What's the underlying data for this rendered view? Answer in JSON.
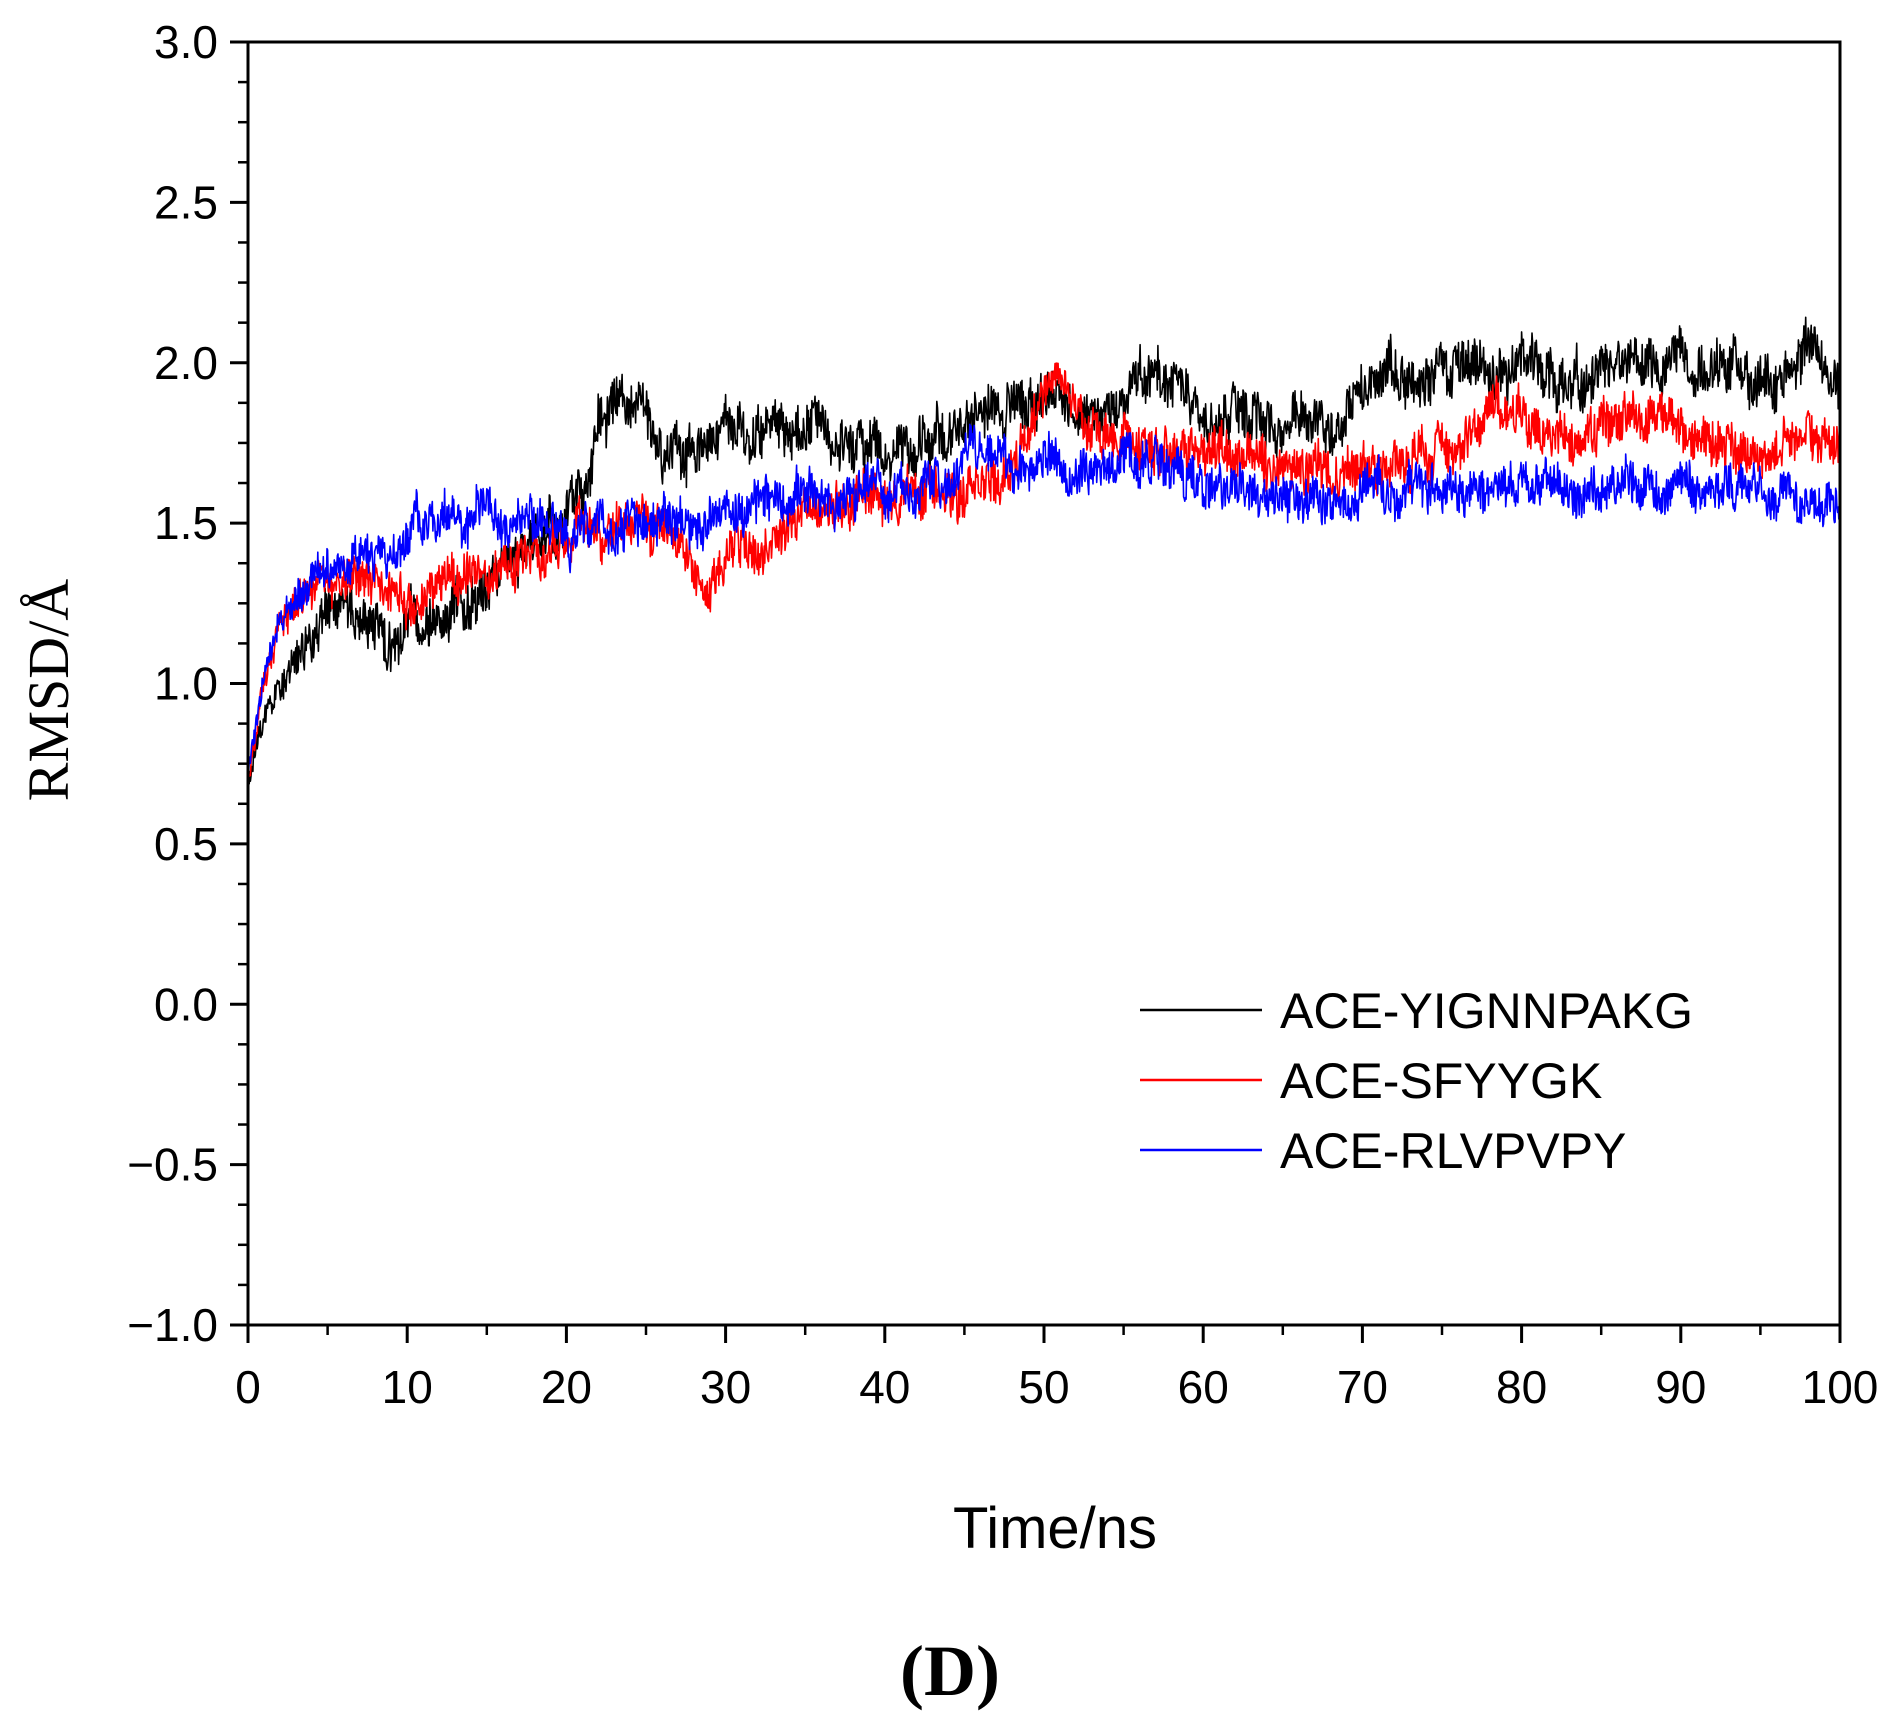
{
  "chart_data": {
    "type": "line",
    "title": "",
    "xlabel": "Time/ns",
    "ylabel": "RMSD/Å",
    "xlim": [
      0,
      100
    ],
    "ylim": [
      -1.0,
      3.0
    ],
    "x_ticks": [
      0,
      10,
      20,
      30,
      40,
      50,
      60,
      70,
      80,
      90,
      100
    ],
    "x_tick_labels": [
      "0",
      "10",
      "20",
      "30",
      "40",
      "50",
      "60",
      "70",
      "80",
      "90",
      "100"
    ],
    "y_ticks": [
      -1.0,
      -0.5,
      0.0,
      0.5,
      1.0,
      1.5,
      2.0,
      2.5,
      3.0
    ],
    "y_tick_labels": [
      "−1.0",
      "−0.5",
      "0.0",
      "0.5",
      "1.0",
      "1.5",
      "2.0",
      "2.5",
      "3.0"
    ],
    "grid": false,
    "legend_position": "bottom-right",
    "panel_label": "(D)",
    "series": [
      {
        "name": "ACE-YIGNNPAKG",
        "color": "#000000",
        "noise": 0.09,
        "x": [
          0,
          1,
          2,
          3,
          4,
          5,
          6,
          7,
          8,
          9,
          10,
          12,
          14,
          16,
          18,
          20,
          21,
          22,
          23,
          24,
          25,
          26,
          28,
          30,
          32,
          34,
          36,
          38,
          40,
          42,
          44,
          46,
          48,
          50,
          51,
          52,
          54,
          56,
          57,
          58,
          60,
          62,
          64,
          66,
          68,
          70,
          72,
          74,
          76,
          78,
          80,
          82,
          84,
          86,
          88,
          90,
          92,
          94,
          96,
          97,
          98,
          99,
          100
        ],
        "y": [
          0.7,
          0.88,
          0.98,
          1.08,
          1.16,
          1.22,
          1.24,
          1.2,
          1.16,
          1.14,
          1.16,
          1.26,
          1.3,
          1.36,
          1.4,
          1.52,
          1.66,
          1.82,
          1.86,
          1.84,
          1.76,
          1.72,
          1.76,
          1.78,
          1.78,
          1.78,
          1.78,
          1.76,
          1.7,
          1.72,
          1.78,
          1.84,
          1.82,
          1.9,
          1.92,
          1.86,
          1.84,
          1.92,
          1.96,
          1.94,
          1.82,
          1.84,
          1.82,
          1.84,
          1.82,
          1.9,
          1.96,
          1.98,
          1.98,
          1.98,
          1.98,
          1.96,
          1.94,
          1.96,
          2.0,
          1.98,
          1.94,
          1.94,
          1.92,
          1.98,
          2.06,
          2.0,
          1.98
        ]
      },
      {
        "name": "ACE-SFYYGK",
        "color": "#ff0000",
        "noise": 0.08,
        "x": [
          0,
          1,
          2,
          3,
          4,
          5,
          6,
          7,
          8,
          9,
          10,
          12,
          14,
          16,
          18,
          20,
          22,
          24,
          26,
          28,
          29,
          30,
          32,
          34,
          36,
          38,
          40,
          42,
          44,
          46,
          48,
          50,
          51,
          52,
          54,
          56,
          58,
          60,
          62,
          64,
          66,
          68,
          70,
          72,
          74,
          76,
          78,
          80,
          82,
          84,
          86,
          88,
          90,
          92,
          94,
          96,
          98,
          100
        ],
        "y": [
          0.7,
          1.0,
          1.16,
          1.26,
          1.32,
          1.34,
          1.34,
          1.34,
          1.32,
          1.3,
          1.28,
          1.3,
          1.34,
          1.36,
          1.4,
          1.46,
          1.48,
          1.5,
          1.5,
          1.38,
          1.32,
          1.38,
          1.44,
          1.5,
          1.52,
          1.56,
          1.58,
          1.6,
          1.6,
          1.62,
          1.66,
          1.9,
          1.96,
          1.86,
          1.8,
          1.72,
          1.72,
          1.72,
          1.7,
          1.68,
          1.68,
          1.66,
          1.64,
          1.7,
          1.74,
          1.74,
          1.86,
          1.82,
          1.78,
          1.76,
          1.8,
          1.84,
          1.82,
          1.76,
          1.74,
          1.74,
          1.76,
          1.8
        ]
      },
      {
        "name": "ACE-RLVPVPY",
        "color": "#0000ff",
        "noise": 0.075,
        "x": [
          0,
          1,
          2,
          3,
          4,
          5,
          6,
          7,
          8,
          9,
          10,
          11,
          12,
          14,
          16,
          18,
          20,
          22,
          24,
          26,
          28,
          30,
          32,
          34,
          36,
          38,
          40,
          42,
          44,
          45,
          46,
          48,
          50,
          52,
          54,
          56,
          58,
          60,
          62,
          64,
          66,
          68,
          70,
          72,
          74,
          76,
          78,
          80,
          82,
          84,
          86,
          87,
          88,
          90,
          92,
          94,
          96,
          98,
          100
        ],
        "y": [
          0.72,
          1.02,
          1.16,
          1.26,
          1.32,
          1.36,
          1.38,
          1.38,
          1.38,
          1.38,
          1.42,
          1.5,
          1.52,
          1.52,
          1.52,
          1.5,
          1.48,
          1.48,
          1.5,
          1.5,
          1.5,
          1.52,
          1.54,
          1.54,
          1.56,
          1.58,
          1.6,
          1.6,
          1.62,
          1.7,
          1.74,
          1.68,
          1.66,
          1.68,
          1.68,
          1.68,
          1.64,
          1.6,
          1.6,
          1.6,
          1.58,
          1.58,
          1.58,
          1.58,
          1.6,
          1.6,
          1.6,
          1.62,
          1.6,
          1.58,
          1.62,
          1.66,
          1.64,
          1.6,
          1.58,
          1.58,
          1.6,
          1.58,
          1.56
        ]
      }
    ]
  }
}
